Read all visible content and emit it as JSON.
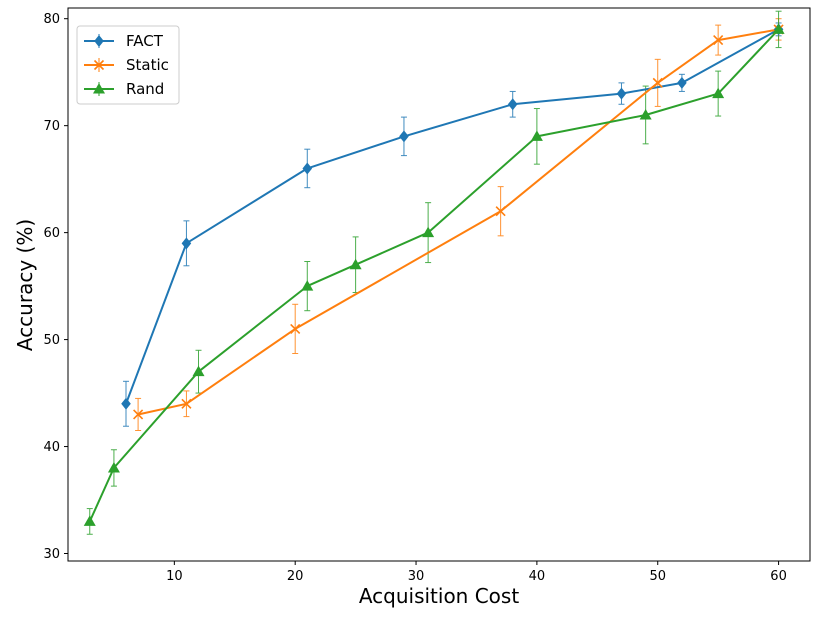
{
  "chart_data": {
    "type": "line",
    "title": "",
    "xlabel": "Acquisition Cost",
    "ylabel": "Accuracy (%)",
    "xlim": [
      1.2,
      62.6
    ],
    "ylim": [
      29.3,
      81.0
    ],
    "xticks": [
      10,
      20,
      30,
      40,
      50,
      60
    ],
    "yticks": [
      30,
      40,
      50,
      60,
      70,
      80
    ],
    "grid": false,
    "legend_position": "top-left",
    "series": [
      {
        "name": "FACT",
        "color": "#1f77b4",
        "marker": "diamond",
        "points": [
          {
            "x": 6,
            "y": 44,
            "err": 2.1
          },
          {
            "x": 11,
            "y": 59,
            "err": 2.1
          },
          {
            "x": 21,
            "y": 66,
            "err": 1.8
          },
          {
            "x": 29,
            "y": 69,
            "err": 1.8
          },
          {
            "x": 38,
            "y": 72,
            "err": 1.2
          },
          {
            "x": 47,
            "y": 73,
            "err": 1.0
          },
          {
            "x": 52,
            "y": 74,
            "err": 0.8
          },
          {
            "x": 60,
            "y": 79,
            "err": 0.6
          }
        ]
      },
      {
        "name": "Static",
        "color": "#ff7f0e",
        "marker": "x",
        "points": [
          {
            "x": 7,
            "y": 43,
            "err": 1.5
          },
          {
            "x": 11,
            "y": 44,
            "err": 1.2
          },
          {
            "x": 20,
            "y": 51,
            "err": 2.3
          },
          {
            "x": 37,
            "y": 62,
            "err": 2.3
          },
          {
            "x": 50,
            "y": 74,
            "err": 2.2
          },
          {
            "x": 55,
            "y": 78,
            "err": 1.4
          },
          {
            "x": 60,
            "y": 79,
            "err": 1.0
          }
        ]
      },
      {
        "name": "Rand",
        "color": "#2ca02c",
        "marker": "triangle",
        "points": [
          {
            "x": 3,
            "y": 33,
            "err": 1.2
          },
          {
            "x": 5,
            "y": 38,
            "err": 1.7
          },
          {
            "x": 12,
            "y": 47,
            "err": 2.0
          },
          {
            "x": 21,
            "y": 55,
            "err": 2.3
          },
          {
            "x": 25,
            "y": 57,
            "err": 2.6
          },
          {
            "x": 31,
            "y": 60,
            "err": 2.8
          },
          {
            "x": 40,
            "y": 69,
            "err": 2.6
          },
          {
            "x": 49,
            "y": 71,
            "err": 2.7
          },
          {
            "x": 55,
            "y": 73,
            "err": 2.1
          },
          {
            "x": 60,
            "y": 79,
            "err": 1.7
          }
        ]
      }
    ]
  }
}
